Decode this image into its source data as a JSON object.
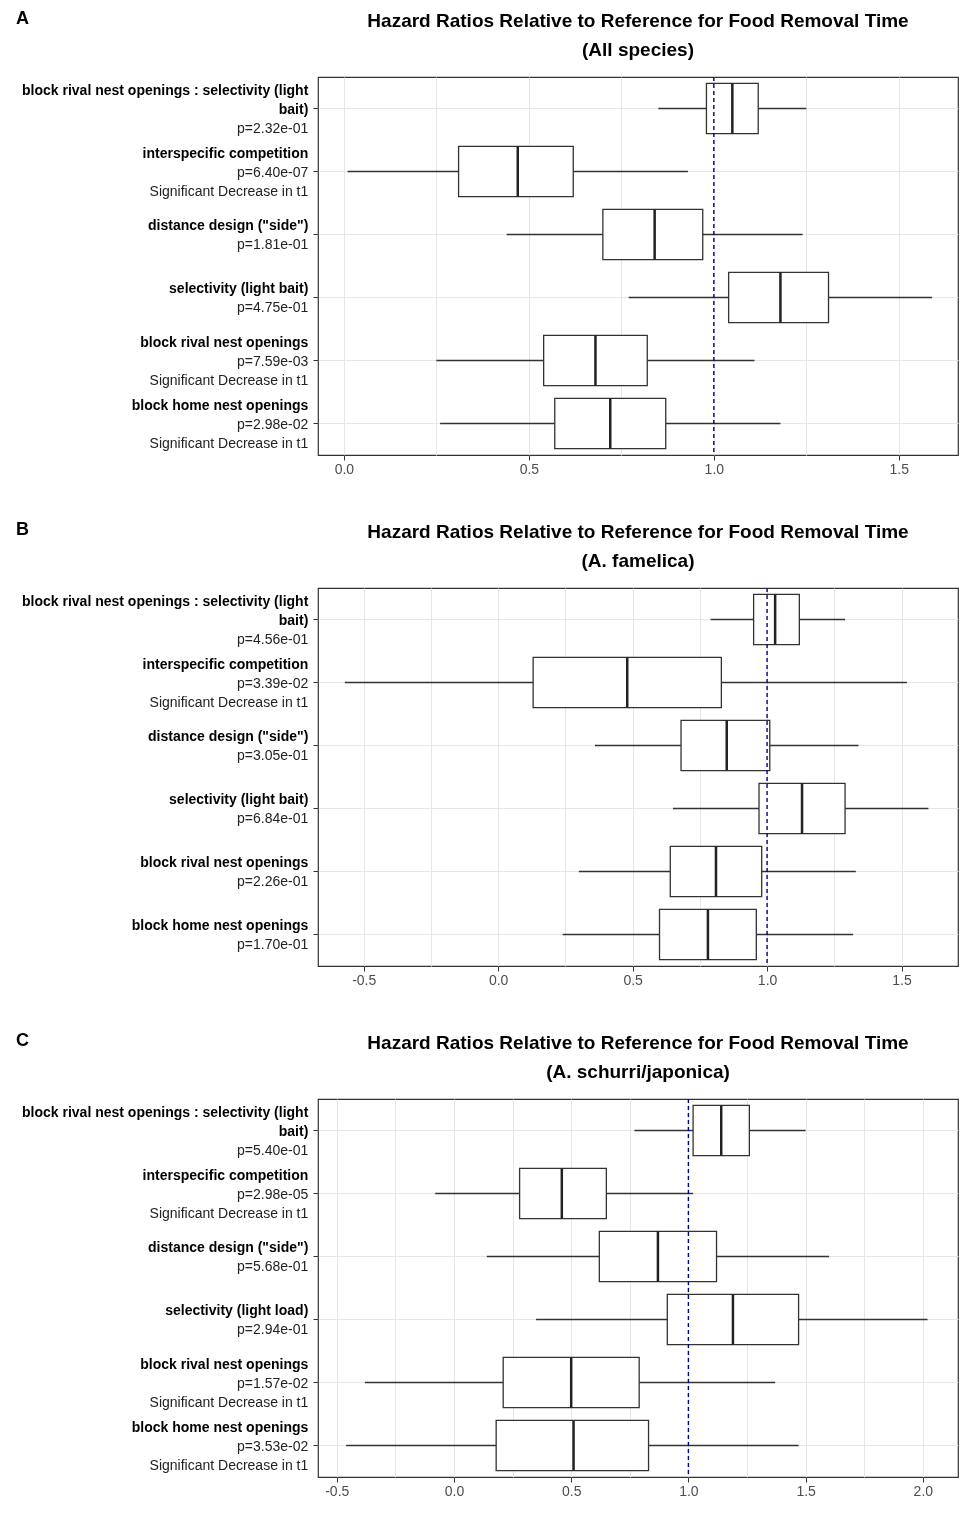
{
  "chart_data": [
    {
      "type": "box",
      "title": "Hazard Ratios Relative to Reference for Food Removal Time",
      "subtitle": "(All species)",
      "annotations": [
        "A"
      ],
      "orientation": "horizontal",
      "grid": true,
      "legend": false,
      "categories": [
        "block rival nest openings : selectivity (light bait)\np=2.32e-01",
        "interspecific competition\np=6.40e-07\nSignificant Decrease in t1",
        "distance design (\"side\")\np=1.81e-01",
        "selectivity (light bait)\np=4.75e-01",
        "block rival nest openings\np=7.59e-03\nSignificant Decrease in t1",
        "block home nest openings\np=2.98e-02\nSignificant Decrease in t1"
      ],
      "boxes": [
        {
          "low": 0.85,
          "q1": 0.98,
          "median": 1.05,
          "q3": 1.12,
          "high": 1.25
        },
        {
          "low": 0.01,
          "q1": 0.31,
          "median": 0.47,
          "q3": 0.62,
          "high": 0.93
        },
        {
          "low": 0.44,
          "q1": 0.7,
          "median": 0.84,
          "q3": 0.97,
          "high": 1.24
        },
        {
          "low": 0.77,
          "q1": 1.04,
          "median": 1.18,
          "q3": 1.31,
          "high": 1.59
        },
        {
          "low": 0.25,
          "q1": 0.54,
          "median": 0.68,
          "q3": 0.82,
          "high": 1.11
        },
        {
          "low": 0.26,
          "q1": 0.57,
          "median": 0.72,
          "q3": 0.87,
          "high": 1.18
        }
      ],
      "xlim": [
        -0.07,
        1.66
      ],
      "xticks": [
        {
          "value": 0,
          "label": "0.0"
        },
        {
          "value": 0.25,
          "label": null
        },
        {
          "value": 0.5,
          "label": "0.5"
        },
        {
          "value": 0.75,
          "label": null
        },
        {
          "value": 1,
          "label": "1.0"
        },
        {
          "value": 1.25,
          "label": null
        },
        {
          "value": 1.5,
          "label": "1.5"
        }
      ],
      "ref_lines": [
        {
          "axis": "x",
          "value": 1,
          "color": "#00008b",
          "line_style": "dashed"
        }
      ]
    },
    {
      "type": "box",
      "title": "Hazard Ratios Relative to Reference for Food Removal Time",
      "subtitle": "(A. famelica)",
      "annotations": [
        "B"
      ],
      "orientation": "horizontal",
      "grid": true,
      "legend": false,
      "categories": [
        "block rival nest openings : selectivity (light bait)\np=4.56e-01",
        "interspecific competition\np=3.39e-02\nSignificant Decrease in t1",
        "distance design (\"side\")\np=3.05e-01",
        "selectivity (light bait)\np=6.84e-01",
        "block rival nest openings\np=2.26e-01",
        "block home nest openings\np=1.70e-01"
      ],
      "boxes": [
        {
          "low": 0.79,
          "q1": 0.95,
          "median": 1.03,
          "q3": 1.12,
          "high": 1.29
        },
        {
          "low": -0.57,
          "q1": 0.13,
          "median": 0.48,
          "q3": 0.83,
          "high": 1.52
        },
        {
          "low": 0.36,
          "q1": 0.68,
          "median": 0.85,
          "q3": 1.01,
          "high": 1.34
        },
        {
          "low": 0.65,
          "q1": 0.97,
          "median": 1.13,
          "q3": 1.29,
          "high": 1.6
        },
        {
          "low": 0.3,
          "q1": 0.64,
          "median": 0.81,
          "q3": 0.98,
          "high": 1.33
        },
        {
          "low": 0.24,
          "q1": 0.6,
          "median": 0.78,
          "q3": 0.96,
          "high": 1.32
        }
      ],
      "xlim": [
        -0.67,
        1.71
      ],
      "xticks": [
        {
          "value": -0.5,
          "label": "-0.5"
        },
        {
          "value": -0.25,
          "label": null
        },
        {
          "value": 0,
          "label": "0.0"
        },
        {
          "value": 0.25,
          "label": null
        },
        {
          "value": 0.5,
          "label": "0.5"
        },
        {
          "value": 0.75,
          "label": null
        },
        {
          "value": 1,
          "label": "1.0"
        },
        {
          "value": 1.25,
          "label": null
        },
        {
          "value": 1.5,
          "label": "1.5"
        }
      ],
      "ref_lines": [
        {
          "axis": "x",
          "value": 1,
          "color": "#00008b",
          "line_style": "dashed"
        }
      ]
    },
    {
      "type": "box",
      "title": "Hazard Ratios Relative to Reference for Food Removal Time",
      "subtitle": "(A. schurri/japonica)",
      "annotations": [
        "C"
      ],
      "orientation": "horizontal",
      "grid": true,
      "legend": false,
      "categories": [
        "block rival nest openings : selectivity (light bait)\np=5.40e-01",
        "interspecific competition\np=2.98e-05\nSignificant Decrease in t1",
        "distance design (\"side\")\np=5.68e-01",
        "selectivity (light load)\np=2.94e-01",
        "block rival nest openings\np=1.57e-02\nSignificant Decrease in t1",
        "block home nest openings\np=3.53e-02\nSignificant Decrease in t1"
      ],
      "boxes": [
        {
          "low": 0.77,
          "q1": 1.02,
          "median": 1.14,
          "q3": 1.26,
          "high": 1.5
        },
        {
          "low": -0.08,
          "q1": 0.28,
          "median": 0.46,
          "q3": 0.65,
          "high": 1.02
        },
        {
          "low": 0.14,
          "q1": 0.62,
          "median": 0.87,
          "q3": 1.12,
          "high": 1.6
        },
        {
          "low": 0.35,
          "q1": 0.91,
          "median": 1.19,
          "q3": 1.47,
          "high": 2.02
        },
        {
          "low": -0.38,
          "q1": 0.21,
          "median": 0.5,
          "q3": 0.79,
          "high": 1.37
        },
        {
          "low": -0.46,
          "q1": 0.18,
          "median": 0.51,
          "q3": 0.83,
          "high": 1.47
        }
      ],
      "xlim": [
        -0.58,
        2.15
      ],
      "xticks": [
        {
          "value": -0.5,
          "label": "-0.5"
        },
        {
          "value": -0.25,
          "label": null
        },
        {
          "value": 0,
          "label": "0.0"
        },
        {
          "value": 0.25,
          "label": null
        },
        {
          "value": 0.5,
          "label": "0.5"
        },
        {
          "value": 0.75,
          "label": null
        },
        {
          "value": 1,
          "label": "1.0"
        },
        {
          "value": 1.25,
          "label": null
        },
        {
          "value": 1.5,
          "label": "1.5"
        },
        {
          "value": 1.75,
          "label": null
        },
        {
          "value": 2,
          "label": "2.0"
        }
      ],
      "ref_lines": [
        {
          "axis": "x",
          "value": 1,
          "color": "#00008b",
          "line_style": "dashed"
        }
      ]
    }
  ]
}
